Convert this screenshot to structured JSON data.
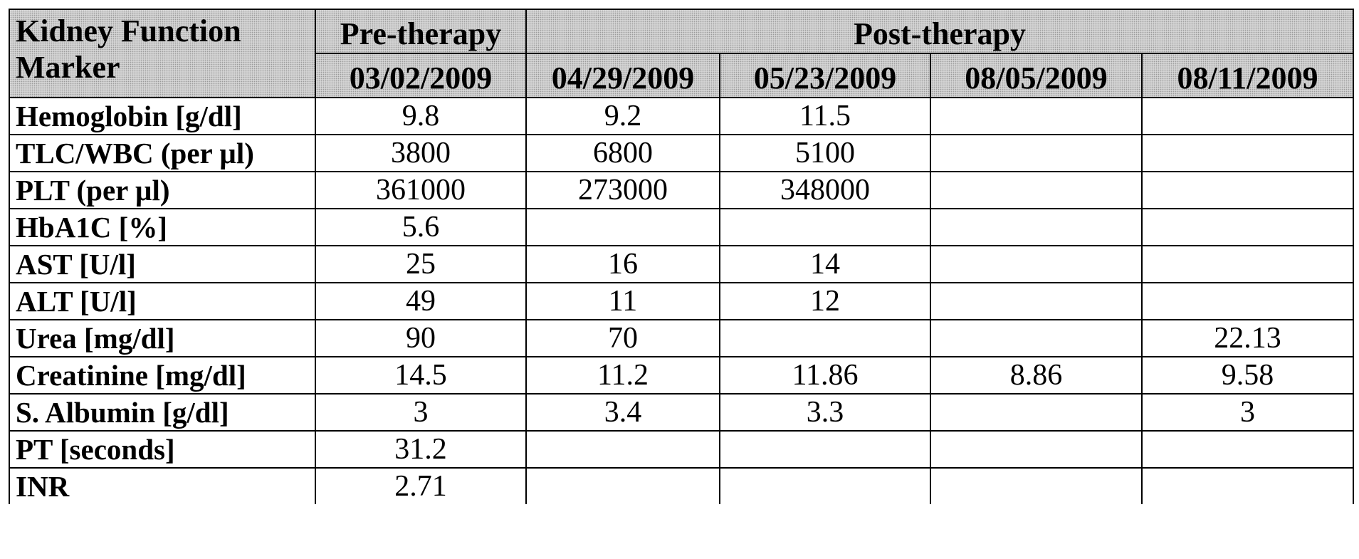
{
  "table": {
    "header": {
      "marker_col": "Kidney Function Marker",
      "group_pre": "Pre-therapy",
      "group_post": "Post-therapy",
      "dates": [
        "03/02/2009",
        "04/29/2009",
        "05/23/2009",
        "08/05/2009",
        "08/11/2009"
      ]
    },
    "rows": [
      {
        "label": "Hemoglobin [g/dl]",
        "values": [
          "9.8",
          "9.2",
          "11.5",
          "",
          ""
        ]
      },
      {
        "label": "TLC/WBC (per µl)",
        "values": [
          "3800",
          "6800",
          "5100",
          "",
          ""
        ]
      },
      {
        "label": "PLT (per µl)",
        "values": [
          "361000",
          "273000",
          "348000",
          "",
          ""
        ]
      },
      {
        "label": "HbA1C [%]",
        "values": [
          "5.6",
          "",
          "",
          "",
          ""
        ]
      },
      {
        "label": "AST [U/l]",
        "values": [
          "25",
          "16",
          "14",
          "",
          ""
        ]
      },
      {
        "label": "ALT [U/l]",
        "values": [
          "49",
          "11",
          "12",
          "",
          ""
        ]
      },
      {
        "label": "Urea [mg/dl]",
        "values": [
          "90",
          "70",
          "",
          "",
          "22.13"
        ]
      },
      {
        "label": "Creatinine [mg/dl]",
        "values": [
          "14.5",
          "11.2",
          "11.86",
          "8.86",
          "9.58"
        ]
      },
      {
        "label": "S. Albumin [g/dl]",
        "values": [
          "3",
          "3.4",
          "3.3",
          "",
          "3"
        ]
      },
      {
        "label": "PT [seconds]",
        "values": [
          "31.2",
          "",
          "",
          "",
          ""
        ]
      },
      {
        "label": "INR",
        "values": [
          "2.71",
          "",
          "",
          "",
          ""
        ]
      }
    ]
  }
}
